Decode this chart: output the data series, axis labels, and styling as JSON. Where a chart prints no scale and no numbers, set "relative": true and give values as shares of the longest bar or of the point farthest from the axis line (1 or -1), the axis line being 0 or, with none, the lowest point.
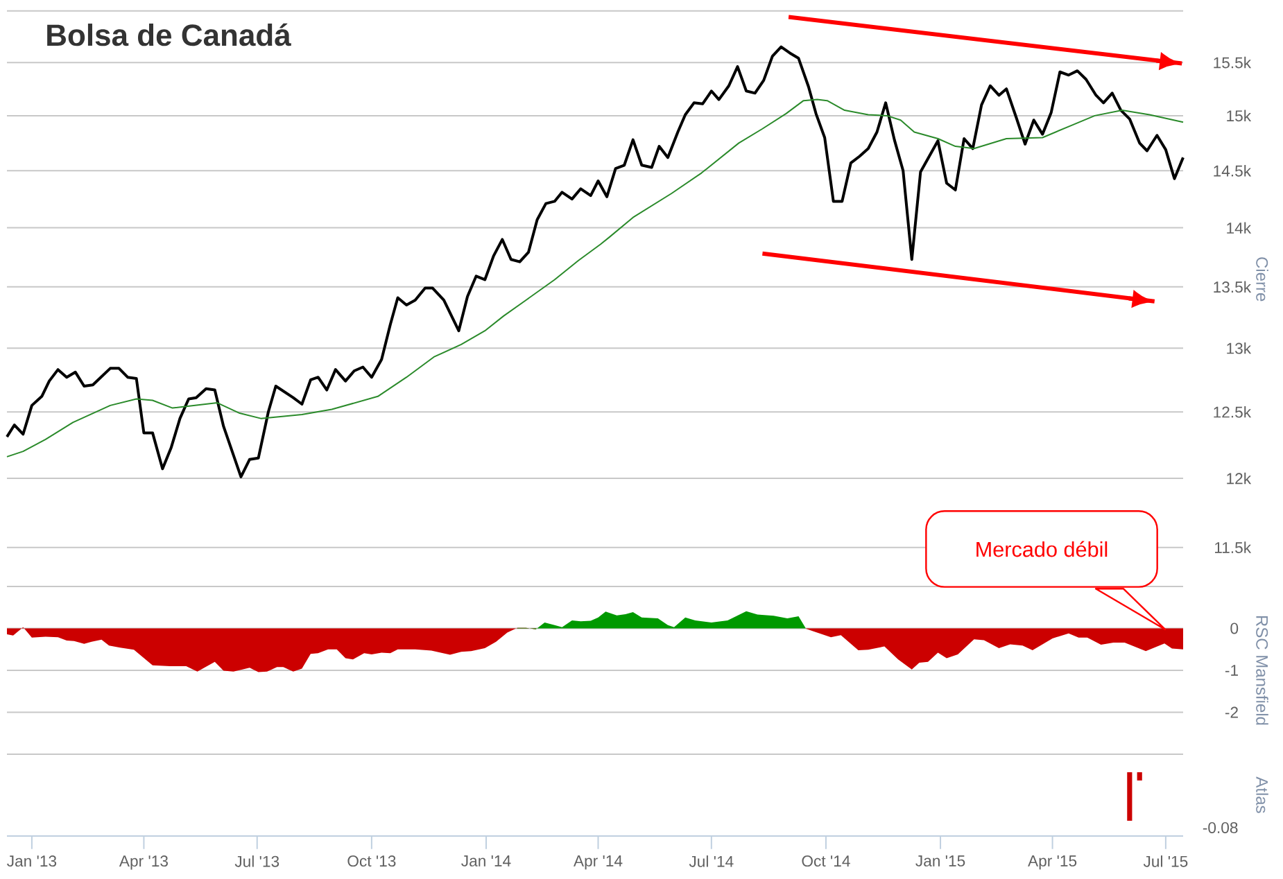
{
  "chart_data": [
    {
      "type": "line",
      "title": "Bolsa de Canadá",
      "ylabel": "Cierre",
      "log": true,
      "grid": "y",
      "tick_labels": "y",
      "xlim": [
        "2012-12-12",
        "2015-07-15"
      ],
      "ylim": [
        11500,
        16000
      ],
      "yticks": [
        {
          "value": 11500,
          "label": "11.5k"
        },
        {
          "value": 12000,
          "label": "12k"
        },
        {
          "value": 12500,
          "label": "12.5k"
        },
        {
          "value": 13000,
          "label": "13k"
        },
        {
          "value": 13500,
          "label": "13.5k"
        },
        {
          "value": 14000,
          "label": "14k"
        },
        {
          "value": 14500,
          "label": "14.5k"
        },
        {
          "value": 15000,
          "label": "15k"
        },
        {
          "value": 15500,
          "label": "15.5k"
        },
        {
          "value": 16000,
          "label": null
        }
      ],
      "series": [
        {
          "color": "#000000",
          "x": [
            "2012-12-12",
            "2012-12-18",
            "2012-12-25",
            "2013-01-01",
            "2013-01-09",
            "2013-01-15",
            "2013-01-22",
            "2013-01-29",
            "2013-02-05",
            "2013-02-12",
            "2013-02-19",
            "2013-03-05",
            "2013-03-12",
            "2013-03-19",
            "2013-03-26",
            "2013-04-01",
            "2013-04-08",
            "2013-04-16",
            "2013-04-23",
            "2013-04-30",
            "2013-05-07",
            "2013-05-13",
            "2013-05-21",
            "2013-05-28",
            "2013-06-04",
            "2013-06-18",
            "2013-06-25",
            "2013-07-02",
            "2013-07-10",
            "2013-07-16",
            "2013-07-30",
            "2013-08-06",
            "2013-08-13",
            "2013-08-19",
            "2013-08-26",
            "2013-09-02",
            "2013-09-10",
            "2013-09-17",
            "2013-09-24",
            "2013-10-01",
            "2013-10-09",
            "2013-10-16",
            "2013-10-22",
            "2013-10-29",
            "2013-11-05",
            "2013-11-13",
            "2013-11-19",
            "2013-11-28",
            "2013-12-10",
            "2013-12-17",
            "2013-12-24",
            "2013-12-31",
            "2014-01-07",
            "2014-01-14",
            "2014-01-21",
            "2014-01-28",
            "2014-02-04",
            "2014-02-11",
            "2014-02-18",
            "2014-02-25",
            "2014-03-03",
            "2014-03-11",
            "2014-03-18",
            "2014-03-26",
            "2014-04-01",
            "2014-04-08",
            "2014-04-15",
            "2014-04-22",
            "2014-04-29",
            "2014-05-06",
            "2014-05-14",
            "2014-05-20",
            "2014-05-27",
            "2014-06-04",
            "2014-06-10",
            "2014-06-17",
            "2014-06-24",
            "2014-07-01",
            "2014-07-07",
            "2014-07-15",
            "2014-07-22",
            "2014-07-29",
            "2014-08-05",
            "2014-08-12",
            "2014-08-19",
            "2014-08-26",
            "2014-09-02",
            "2014-09-09",
            "2014-09-17",
            "2014-09-23",
            "2014-09-30",
            "2014-10-07",
            "2014-10-14",
            "2014-10-21",
            "2014-10-28",
            "2014-11-04",
            "2014-11-11",
            "2014-11-18",
            "2014-11-25",
            "2014-12-02",
            "2014-12-09",
            "2014-12-16",
            "2014-12-23",
            "2014-12-30",
            "2015-01-06",
            "2015-01-13",
            "2015-01-20",
            "2015-01-27",
            "2015-02-03",
            "2015-02-10",
            "2015-02-17",
            "2015-02-23",
            "2015-03-03",
            "2015-03-10",
            "2015-03-17",
            "2015-03-24",
            "2015-03-31",
            "2015-04-07",
            "2015-04-14",
            "2015-04-21",
            "2015-04-28",
            "2015-05-06",
            "2015-05-12",
            "2015-05-19",
            "2015-05-26",
            "2015-06-02",
            "2015-06-10",
            "2015-06-16",
            "2015-06-24",
            "2015-07-01",
            "2015-07-08",
            "2015-07-15"
          ],
          "values": [
            12310,
            12400,
            12330,
            12550,
            12620,
            12740,
            12830,
            12770,
            12810,
            12700,
            12710,
            12840,
            12840,
            12770,
            12760,
            12340,
            12340,
            12070,
            12230,
            12450,
            12600,
            12610,
            12680,
            12670,
            12390,
            12010,
            12140,
            12150,
            12500,
            12700,
            12610,
            12560,
            12750,
            12770,
            12670,
            12830,
            12740,
            12820,
            12850,
            12770,
            12910,
            13190,
            13410,
            13350,
            13390,
            13490,
            13490,
            13390,
            13140,
            13420,
            13590,
            13560,
            13760,
            13900,
            13730,
            13710,
            13790,
            14070,
            14210,
            14230,
            14310,
            14250,
            14340,
            14280,
            14410,
            14270,
            14520,
            14550,
            14780,
            14550,
            14530,
            14720,
            14620,
            14850,
            15010,
            15120,
            15110,
            15230,
            15150,
            15280,
            15460,
            15230,
            15210,
            15330,
            15560,
            15650,
            15590,
            15540,
            15270,
            15020,
            14800,
            14230,
            14230,
            14570,
            14630,
            14700,
            14850,
            15120,
            14780,
            14500,
            13730,
            14490,
            14630,
            14770,
            14390,
            14330,
            14790,
            14700,
            15100,
            15280,
            15190,
            15250,
            14980,
            14740,
            14960,
            14830,
            15030,
            15410,
            15380,
            15420,
            15340,
            15190,
            15120,
            15210,
            15050,
            14970,
            14750,
            14680,
            14820,
            14690,
            14430,
            14620
          ]
        },
        {
          "color": "#2a8a2a",
          "x": [
            "2012-12-12",
            "2012-12-25",
            "2013-01-12",
            "2013-02-03",
            "2013-03-05",
            "2013-03-26",
            "2013-04-08",
            "2013-04-24",
            "2013-05-11",
            "2013-05-30",
            "2013-06-17",
            "2013-07-04",
            "2013-08-06",
            "2013-08-30",
            "2013-10-06",
            "2013-10-29",
            "2013-11-20",
            "2013-12-12",
            "2013-12-31",
            "2014-01-15",
            "2014-02-02",
            "2014-02-25",
            "2014-03-16",
            "2014-04-03",
            "2014-04-10",
            "2014-04-29",
            "2014-05-30",
            "2014-06-23",
            "2014-07-23",
            "2014-08-11",
            "2014-08-30",
            "2014-09-13",
            "2014-09-24",
            "2014-10-02",
            "2014-10-16",
            "2014-11-04",
            "2014-11-19",
            "2014-11-30",
            "2014-12-11",
            "2014-12-30",
            "2015-01-13",
            "2015-01-28",
            "2015-02-23",
            "2015-03-24",
            "2015-04-16",
            "2015-05-05",
            "2015-05-27",
            "2015-06-18",
            "2015-07-15"
          ],
          "values": [
            12160,
            12200,
            12290,
            12420,
            12550,
            12600,
            12590,
            12530,
            12550,
            12570,
            12490,
            12450,
            12480,
            12520,
            12620,
            12770,
            12930,
            13030,
            13140,
            13260,
            13390,
            13560,
            13720,
            13860,
            13920,
            14090,
            14300,
            14480,
            14750,
            14880,
            15020,
            15140,
            15150,
            15140,
            15050,
            15010,
            15000,
            14960,
            14850,
            14790,
            14720,
            14700,
            14790,
            14800,
            14910,
            15000,
            15050,
            15010,
            14940
          ]
        },
        {
          "color": "#ff0000",
          "x": [
            "2014-09-01",
            "2015-07-14"
          ],
          "values": [
            15940,
            15490
          ]
        },
        {
          "color": "#ff0000",
          "x": [
            "2014-08-11",
            "2015-06-22"
          ],
          "values": [
            13780,
            13380
          ]
        }
      ]
    },
    {
      "type": "area",
      "ylabel": "RSC Mansfield",
      "grid": "y",
      "tick_labels": "y",
      "xlim": [
        "2012-12-12",
        "2015-07-15"
      ],
      "ylim": [
        -3,
        1
      ],
      "yticks": [
        {
          "value": 1,
          "label": null
        },
        0,
        -1,
        -2,
        {
          "value": -3,
          "label": null
        }
      ],
      "annotations": [
        "Mercado débil"
      ],
      "x": [
        "2012-12-12",
        "2012-12-17",
        "2012-12-25",
        "2013-01-01",
        "2013-01-12",
        "2013-01-22",
        "2013-01-29",
        "2013-02-04",
        "2013-02-12",
        "2013-02-18",
        "2013-02-26",
        "2013-03-04",
        "2013-03-13",
        "2013-03-24",
        "2013-04-08",
        "2013-04-22",
        "2013-05-05",
        "2013-05-14",
        "2013-05-28",
        "2013-06-04",
        "2013-06-12",
        "2013-06-25",
        "2013-07-02",
        "2013-07-09",
        "2013-07-17",
        "2013-07-22",
        "2013-07-30",
        "2013-08-06",
        "2013-08-13",
        "2013-08-19",
        "2013-08-27",
        "2013-09-03",
        "2013-09-10",
        "2013-09-16",
        "2013-09-25",
        "2013-10-01",
        "2013-10-09",
        "2013-10-16",
        "2013-10-22",
        "2013-11-05",
        "2013-11-18",
        "2013-12-03",
        "2013-12-12",
        "2013-12-20",
        "2013-12-31",
        "2014-01-09",
        "2014-01-18",
        "2014-01-26",
        "2014-02-02",
        "2014-02-10",
        "2014-02-17",
        "2014-02-25",
        "2014-03-03",
        "2014-03-11",
        "2014-03-18",
        "2014-03-26",
        "2014-04-01",
        "2014-04-07",
        "2014-04-16",
        "2014-04-23",
        "2014-04-29",
        "2014-05-06",
        "2014-05-19",
        "2014-05-27",
        "2014-06-01",
        "2014-06-10",
        "2014-06-18",
        "2014-07-01",
        "2014-07-14",
        "2014-07-29",
        "2014-08-07",
        "2014-08-20",
        "2014-08-31",
        "2014-09-09",
        "2014-09-15",
        "2014-09-21",
        "2014-10-05",
        "2014-10-13",
        "2014-10-27",
        "2014-11-04",
        "2014-11-17",
        "2014-11-28",
        "2014-12-09",
        "2014-12-15",
        "2014-12-22",
        "2014-12-30",
        "2015-01-06",
        "2015-01-15",
        "2015-01-28",
        "2015-02-05",
        "2015-02-17",
        "2015-02-26",
        "2015-03-08",
        "2015-03-16",
        "2015-04-01",
        "2015-04-14",
        "2015-04-22",
        "2015-04-29",
        "2015-05-10",
        "2015-05-20",
        "2015-05-29",
        "2015-06-15",
        "2015-06-30",
        "2015-07-06",
        "2015-07-15"
      ],
      "series": [
        {
          "color": "#cc0000",
          "values": [
            -0.14,
            -0.17,
            0.03,
            -0.22,
            -0.2,
            -0.21,
            -0.29,
            -0.3,
            -0.37,
            -0.32,
            -0.27,
            -0.41,
            -0.46,
            -0.51,
            -0.88,
            -0.9,
            -0.9,
            -1.03,
            -0.8,
            -1.01,
            -1.03,
            -0.94,
            -1.04,
            -1.03,
            -0.92,
            -0.92,
            -1.03,
            -0.96,
            -0.61,
            -0.59,
            -0.5,
            -0.5,
            -0.71,
            -0.74,
            -0.59,
            -0.62,
            -0.58,
            -0.59,
            -0.5,
            -0.5,
            -0.53,
            -0.63,
            -0.56,
            -0.54,
            -0.47,
            -0.32,
            -0.1,
            0.01,
            0.01,
            -0.02,
            null,
            null,
            null,
            null,
            null,
            null,
            null,
            null,
            null,
            null,
            null,
            null,
            null,
            null,
            null,
            null,
            null,
            null,
            null,
            null,
            null,
            null,
            null,
            null,
            -0.01,
            -0.07,
            -0.21,
            -0.16,
            -0.52,
            -0.51,
            -0.43,
            -0.74,
            -0.98,
            -0.82,
            -0.8,
            -0.58,
            -0.71,
            -0.62,
            -0.26,
            -0.28,
            -0.47,
            -0.38,
            -0.41,
            -0.52,
            -0.24,
            -0.12,
            -0.22,
            -0.22,
            -0.39,
            -0.34,
            -0.34,
            -0.54,
            -0.36,
            -0.48,
            -0.5
          ]
        },
        {
          "color": "#009900",
          "values": [
            null,
            null,
            null,
            null,
            null,
            null,
            null,
            null,
            null,
            null,
            null,
            null,
            null,
            null,
            null,
            null,
            null,
            null,
            null,
            null,
            null,
            null,
            null,
            null,
            null,
            null,
            null,
            null,
            null,
            null,
            null,
            null,
            null,
            null,
            null,
            null,
            null,
            null,
            null,
            null,
            null,
            null,
            null,
            null,
            null,
            null,
            null,
            0.01,
            0.01,
            -0.02,
            0.14,
            0.08,
            0.03,
            0.19,
            0.17,
            0.18,
            0.26,
            0.4,
            0.31,
            0.34,
            0.39,
            0.26,
            0.24,
            0.08,
            0.03,
            0.26,
            0.19,
            0.14,
            0.19,
            0.41,
            0.33,
            0.3,
            0.24,
            0.29,
            -0.01,
            null,
            null,
            null,
            null,
            null,
            null,
            null,
            null,
            null,
            null,
            null,
            null,
            null,
            null,
            null,
            null,
            null,
            null,
            null,
            null,
            null,
            null,
            null,
            null,
            null,
            null,
            null,
            null,
            null,
            null
          ]
        }
      ]
    },
    {
      "type": "bar",
      "ylabel": "Atlas",
      "xlim": [
        "2012-12-12",
        "2015-07-15"
      ],
      "relative": true,
      "annotations": [
        "-0.08"
      ],
      "xticks": [
        {
          "value": "2013-01-01",
          "label": "Jan '13"
        },
        {
          "value": "2013-04-01",
          "label": "Apr '13"
        },
        {
          "value": "2013-07-01",
          "label": "Jul '13"
        },
        {
          "value": "2013-10-01",
          "label": "Oct '13"
        },
        {
          "value": "2014-01-01",
          "label": "Jan '14"
        },
        {
          "value": "2014-04-01",
          "label": "Apr '14"
        },
        {
          "value": "2014-07-01",
          "label": "Jul '14"
        },
        {
          "value": "2014-10-01",
          "label": "Oct '14"
        },
        {
          "value": "2015-01-01",
          "label": "Jan '15"
        },
        {
          "value": "2015-04-01",
          "label": "Apr '15"
        },
        {
          "value": "2015-07-01",
          "label": "Jul '15"
        }
      ],
      "x": [
        "2015-06-02",
        "2015-06-10"
      ],
      "series": [
        {
          "color": "#cc0000",
          "values": [
            -1,
            -0.17
          ]
        }
      ]
    }
  ]
}
